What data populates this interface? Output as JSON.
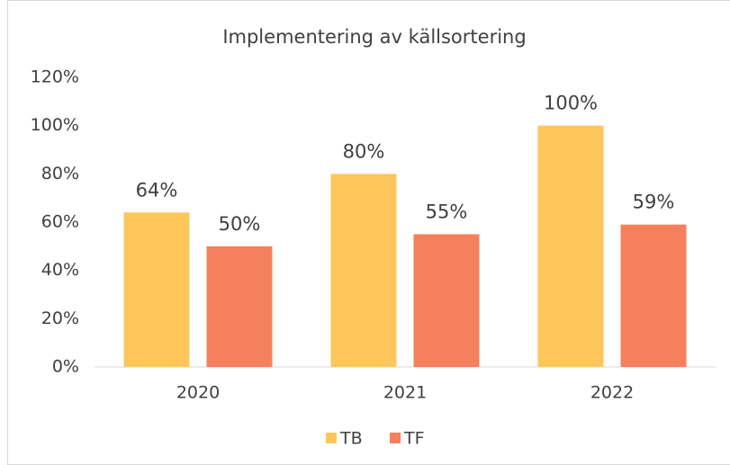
{
  "chart_data": {
    "type": "bar",
    "title": "Implementering av källsortering",
    "categories": [
      "2020",
      "2021",
      "2022"
    ],
    "series": [
      {
        "name": "TB",
        "color": "#ffc65c",
        "values": [
          64,
          80,
          100
        ],
        "value_labels": [
          "64%",
          "80%",
          "100%"
        ]
      },
      {
        "name": "TF",
        "color": "#f5805c",
        "values": [
          50,
          55,
          59
        ],
        "value_labels": [
          "50%",
          "55%",
          "59%"
        ]
      }
    ],
    "ylim": [
      0,
      120
    ],
    "yticks": [
      {
        "value": 0,
        "label": "0%"
      },
      {
        "value": 20,
        "label": "20%"
      },
      {
        "value": 40,
        "label": "40%"
      },
      {
        "value": 60,
        "label": "60%"
      },
      {
        "value": 80,
        "label": "80%"
      },
      {
        "value": 100,
        "label": "100%"
      },
      {
        "value": 120,
        "label": "120%"
      }
    ],
    "grid": false,
    "legend": "bottom"
  }
}
